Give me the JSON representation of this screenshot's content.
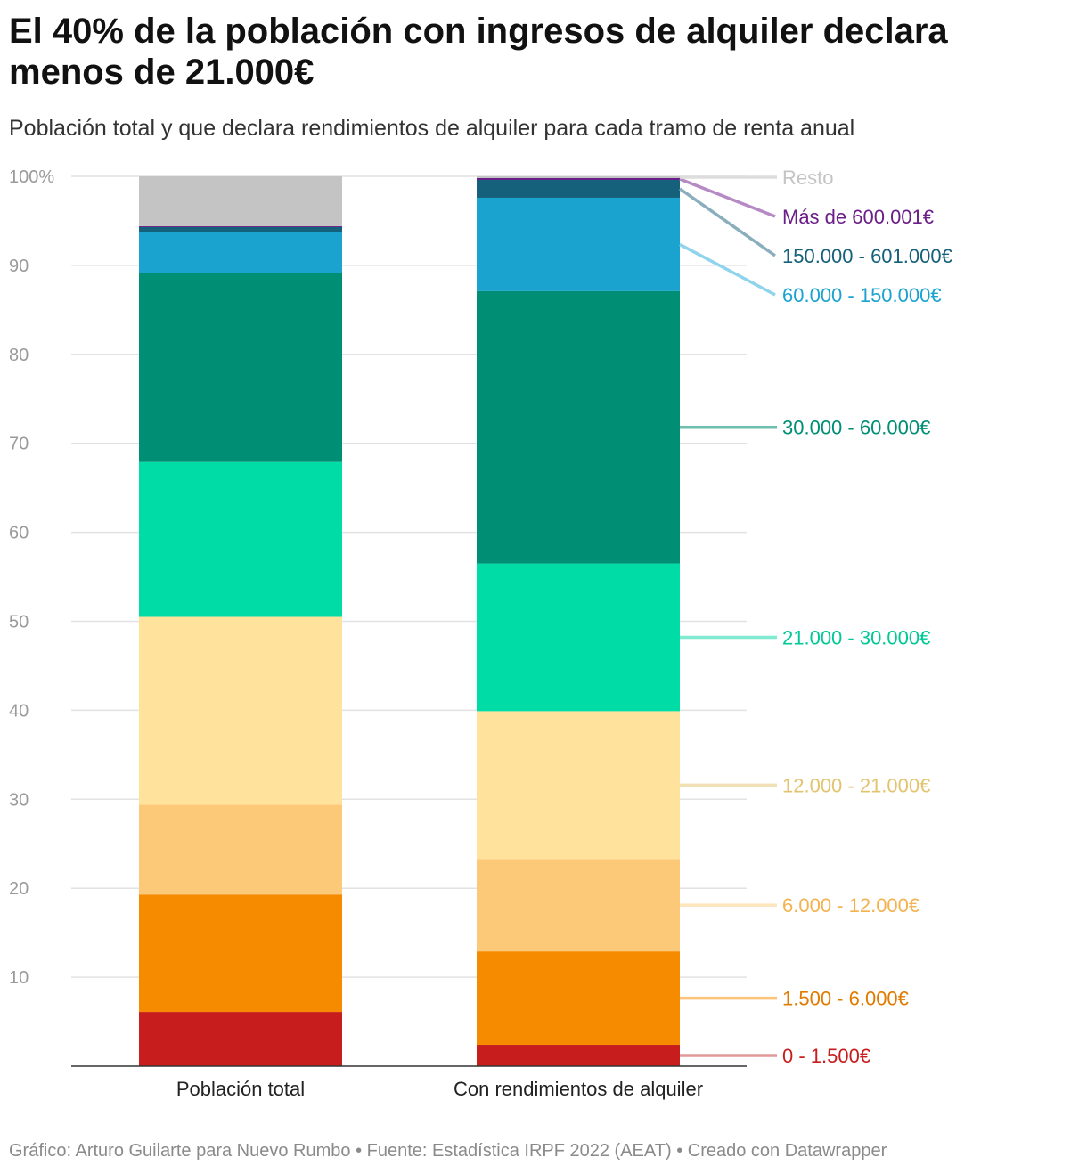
{
  "title": "El 40% de la población con ingresos de alquiler declara menos de 21.000€",
  "subtitle": "Población total y que declara rendimientos de alquiler para cada tramo de renta anual",
  "footer": {
    "credit": "Gráfico: Arturo Guilarte para Nuevo Rumbo",
    "source": "Fuente: Estadística IRPF 2022 (AEAT)",
    "tool": "Creado con Datawrapper",
    "separator": " • "
  },
  "chart_data": {
    "type": "bar",
    "stacked": true,
    "ylim": [
      0,
      100
    ],
    "yticks": [
      10,
      20,
      30,
      40,
      50,
      60,
      70,
      80,
      90,
      100
    ],
    "ytick_labels": [
      "10",
      "20",
      "30",
      "40",
      "50",
      "60",
      "70",
      "80",
      "90",
      "100%"
    ],
    "categories": [
      "Población total",
      "Con rendimientos de alquiler"
    ],
    "series": [
      {
        "name": "0 - 1.500€",
        "color": "#c71e1d",
        "line_color": "#e09a99",
        "values": [
          6.1,
          2.4
        ]
      },
      {
        "name": "1.500 - 6.000€",
        "color": "#f78b00",
        "line_color": "#fbc47c",
        "values": [
          13.2,
          10.5
        ]
      },
      {
        "name": "6.000 - 12.000€",
        "color": "#fcc979",
        "line_color": "#fde5bd",
        "values": [
          10.1,
          10.4
        ]
      },
      {
        "name": "12.000 - 21.000€",
        "color": "#ffe39d",
        "line_color": "#f1dfb6",
        "values": [
          21.1,
          16.6
        ]
      },
      {
        "name": "21.000 - 30.000€",
        "color": "#00dca6",
        "line_color": "#80ebd0",
        "values": [
          17.4,
          16.6
        ]
      },
      {
        "name": "30.000 - 60.000€",
        "color": "#008f74",
        "line_color": "#6fbfae",
        "values": [
          21.2,
          30.6
        ]
      },
      {
        "name": "60.000 - 150.000€",
        "color": "#1ba3cf",
        "line_color": "#8fd3ec",
        "values": [
          4.6,
          10.5
        ]
      },
      {
        "name": "150.000 - 601.000€",
        "color": "#15607a",
        "line_color": "#8aaebb",
        "values": [
          0.6,
          2.0
        ]
      },
      {
        "name": "Más de 600.001€",
        "color": "#6b1e87",
        "line_color": "#b58ac5",
        "values": [
          0.1,
          0.2
        ]
      },
      {
        "name": "Resto",
        "color": "#c4c4c4",
        "line_color": "#dddddd",
        "label_color": "#c4c4c4",
        "values": [
          5.6,
          0.2
        ]
      }
    ],
    "label_text_colors": {
      "0 - 1.500€": "#c71e1d",
      "1.500 - 6.000€": "#e07b00",
      "6.000 - 12.000€": "#f3b24f",
      "12.000 - 21.000€": "#e2c36e",
      "21.000 - 30.000€": "#00c896",
      "30.000 - 60.000€": "#008f74",
      "60.000 - 150.000€": "#1ba3cf",
      "150.000 - 601.000€": "#15607a",
      "Más de 600.001€": "#6b1e87",
      "Resto": "#c4c4c4"
    },
    "gridlines": true,
    "legend": "direct labels right"
  }
}
